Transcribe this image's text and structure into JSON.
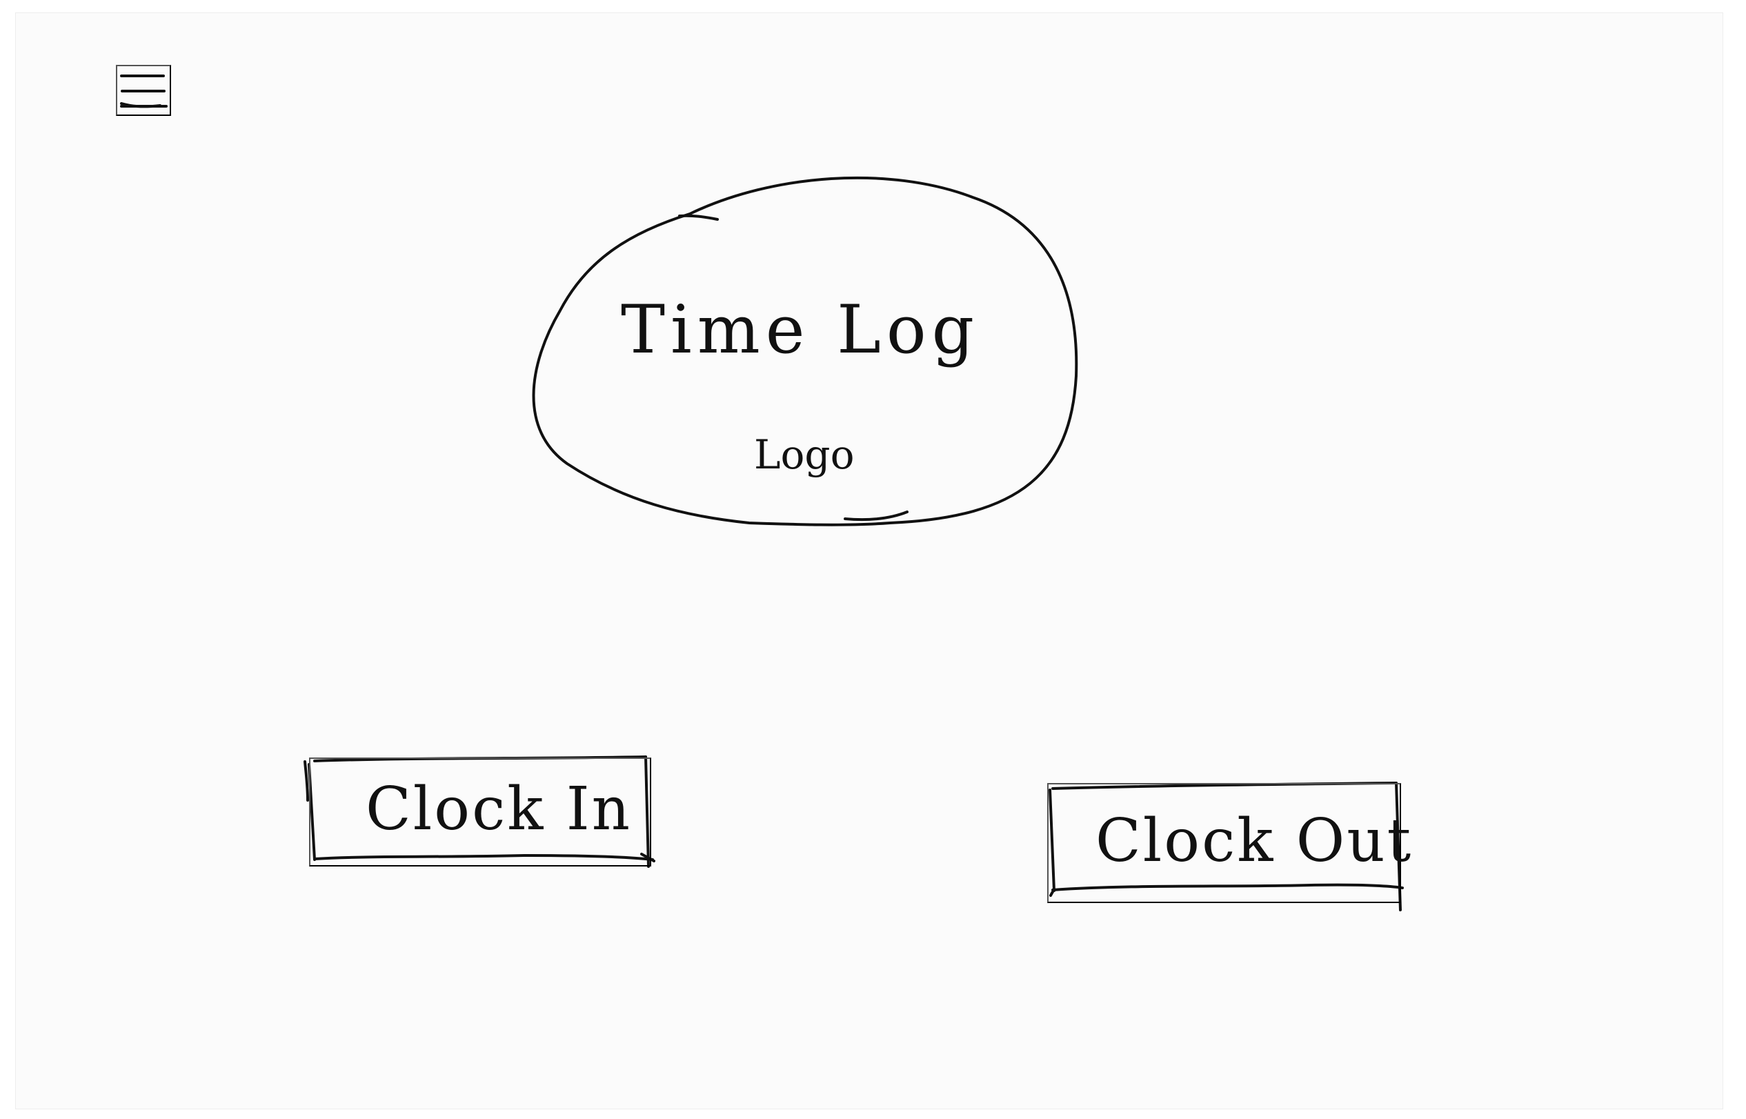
{
  "header": {
    "menu_icon": "hamburger-menu-icon"
  },
  "logo": {
    "title": "Time Log",
    "subtitle": "Logo"
  },
  "actions": {
    "clock_in_label": "Clock In",
    "clock_out_label": "Clock Out"
  },
  "colors": {
    "ink": "#111111",
    "paper": "#fbfbfb",
    "background": "#ffffff"
  }
}
